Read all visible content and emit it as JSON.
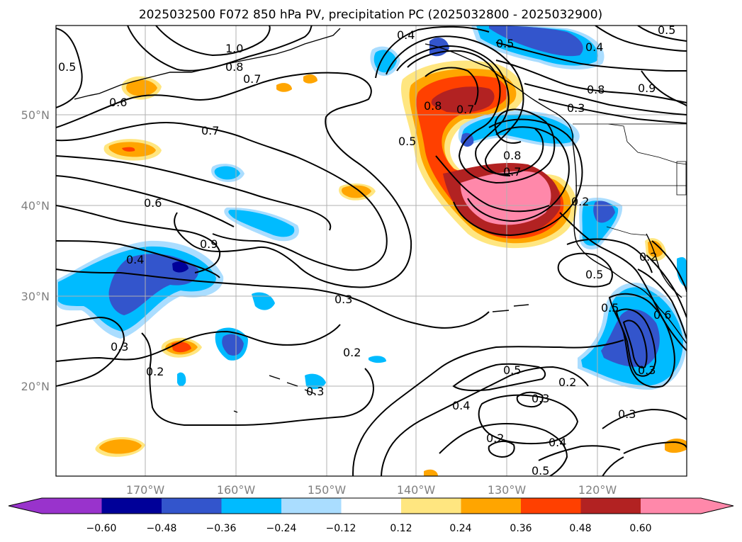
{
  "title": "2025032500 F072 850 hPa PV, precipitation PC (2025032800 - 2025032900)",
  "lat_labels": [
    "50°N",
    "40°N",
    "30°N",
    "20°N"
  ],
  "lon_labels": [
    "170°W",
    "160°W",
    "150°W",
    "140°W",
    "130°W",
    "120°W"
  ],
  "colorbar": {
    "tick_labels": [
      "−0.60",
      "−0.48",
      "−0.36",
      "−0.24",
      "−0.12",
      "0.12",
      "0.24",
      "0.36",
      "0.48",
      "0.60"
    ],
    "colors": [
      "#9933cc",
      "#000099",
      "#3355cc",
      "#00bbff",
      "#aaddff",
      "#ffffff",
      "#ffe680",
      "#ffa500",
      "#ff4000",
      "#b22222",
      "#ff88aa"
    ],
    "extend": "both"
  },
  "pv_contour_labels": [
    "0.4",
    "0.5",
    "0.4",
    "0.5",
    "1.0",
    "0.8",
    "0.7",
    "0.5",
    "0.6",
    "0.8",
    "0.3",
    "0.9",
    "0.8",
    "0.7",
    "0.7",
    "0.5",
    "0.8",
    "0.7",
    "0.2",
    "0.6",
    "0.9",
    "0.4",
    "0.2",
    "0.5",
    "0.3",
    "0.5",
    "0.6",
    "0.3",
    "0.2",
    "0.5",
    "0.3",
    "0.2",
    "0.3",
    "0.4",
    "0.2",
    "0.3",
    "0.4",
    "0.5",
    "0.2",
    "0.3"
  ],
  "contour_field": "850 hPa PV",
  "shading_field": "precipitation PC"
}
